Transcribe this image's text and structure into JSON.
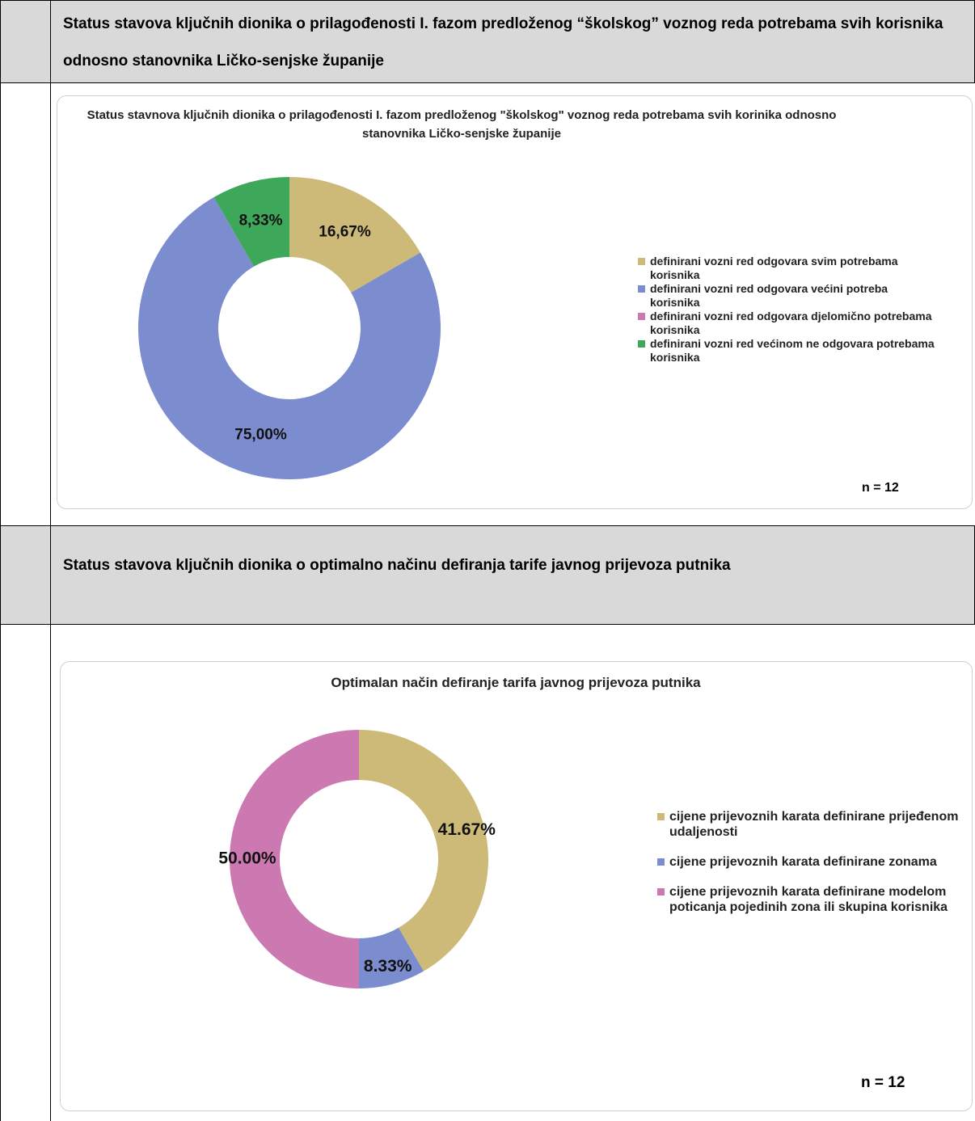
{
  "headings": [
    "Status stavova ključnih dionika o prilagođenosti I. fazom predloženog “školskog” voznog reda potrebama svih korisnika odnosno stanovnika Ličko-senjske županije",
    "Status stavova ključnih dionika o optimalno načinu defiranja tarife javnog prijevoza putnika"
  ],
  "chart_data": [
    {
      "type": "donut",
      "title": "Status stavnova ključnih dionika o prilagođenosti I. fazom predloženog \"školskog\" voznog reda potrebama svih korinika odnosno stanovnika Ličko-senjske županije",
      "categories": [
        "definirani vozni red odgovara svim potrebama korisnika",
        "definirani vozni red odgovara većini potreba korisnika",
        "definirani vozni red odgovara djelomično potrebama korisnika",
        "definirani vozni red većinom ne odgovara potrebama korisnika"
      ],
      "values": [
        16.67,
        75.0,
        0,
        8.33
      ],
      "value_labels": [
        "16,67%",
        "75,00%",
        null,
        "8,33%"
      ],
      "colors": [
        "#cdb978",
        "#7b8ccf",
        "#cc79b2",
        "#3ea85a"
      ],
      "annotation": "n = 12",
      "legend": "right"
    },
    {
      "type": "donut",
      "title": "Optimalan način defiranje tarifa javnog prijevoza putnika",
      "categories": [
        "cijene prijevoznih karata definirane prijeđenom udaljenosti",
        "cijene prijevoznih karata definirane zonama",
        "cijene prijevoznih karata definirane modelom poticanja pojedinih zona ili skupina korisnika"
      ],
      "values": [
        41.67,
        8.33,
        50.0
      ],
      "value_labels": [
        "41.67%",
        "8.33%",
        "50.00%"
      ],
      "colors": [
        "#cdb978",
        "#7b8ccf",
        "#cc79b2"
      ],
      "annotation": "n = 12",
      "legend": "right"
    }
  ]
}
